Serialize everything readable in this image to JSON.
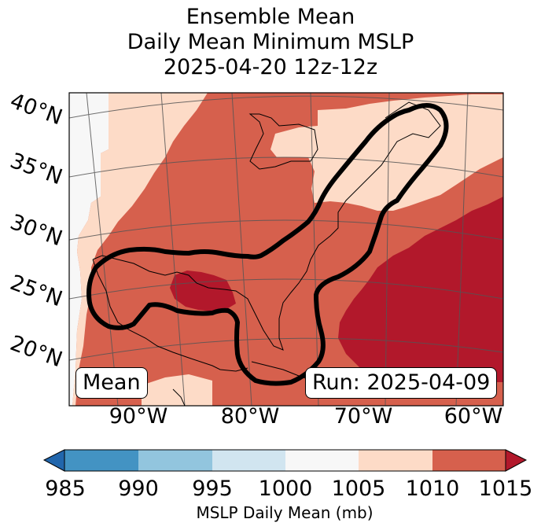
{
  "title": {
    "line1": "Ensemble Mean",
    "line2": "Daily Mean Minimum MSLP",
    "line3": "2025-04-20 12z-12z"
  },
  "map": {
    "lat_labels": [
      "40°N",
      "35°N",
      "30°N",
      "25°N",
      "20°N"
    ],
    "lon_labels": [
      "90°W",
      "80°W",
      "70°W",
      "60°W"
    ],
    "mean_label": "Mean",
    "run_label": "Run: 2025-04-09",
    "fill_colors": {
      "1000_1005": "#f7f7f7",
      "1005_1010": "#fddbc7",
      "1010_1015": "#d6604d",
      "above_1015": "#b2182b"
    }
  },
  "colorbar": {
    "ticks": [
      "985",
      "990",
      "995",
      "1000",
      "1005",
      "1010",
      "1015"
    ],
    "label": "MSLP Daily Mean (mb)",
    "colors": [
      "#2166ac",
      "#4393c3",
      "#92c5de",
      "#d1e5f0",
      "#f7f7f7",
      "#fddbc7",
      "#d6604d",
      "#b2182b"
    ]
  }
}
